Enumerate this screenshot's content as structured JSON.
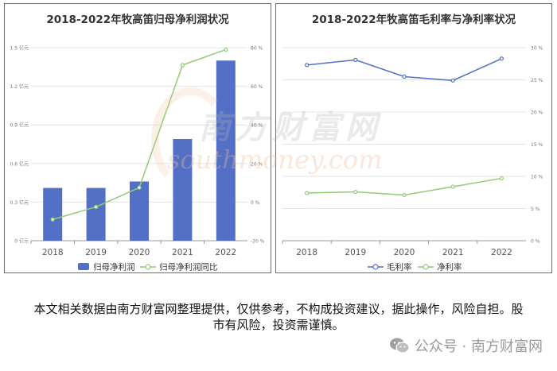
{
  "chart_data": [
    {
      "type": "bar",
      "title": "2018-2022年牧高笛归母净利润状况",
      "categories": [
        "2018",
        "2019",
        "2020",
        "2021",
        "2022"
      ],
      "series": [
        {
          "name": "归母净利润",
          "kind": "bar",
          "axis": "left",
          "values": [
            0.41,
            0.41,
            0.46,
            0.79,
            1.4
          ]
        },
        {
          "name": "归母净利润同比",
          "kind": "line",
          "axis": "right",
          "values": [
            -9,
            -2.5,
            7.5,
            71,
            79
          ]
        }
      ],
      "y_left": {
        "ticks": [
          "0 亿元",
          "0.3 亿元",
          "0.6 亿元",
          "0.9 亿元",
          "1.2 亿元",
          "1.5 亿元"
        ],
        "ylim": [
          0,
          1.5
        ]
      },
      "y_right": {
        "ticks": [
          "-20 %",
          "0 %",
          "20 %",
          "40 %",
          "60 %",
          "80 %"
        ],
        "ylim": [
          -20,
          80
        ]
      },
      "grid": true,
      "legend": "bottom",
      "colors": {
        "bar": "#5470c6",
        "line": "#91cc75"
      }
    },
    {
      "type": "line",
      "title": "2018-2022年牧高笛毛利率与净利率状况",
      "categories": [
        "2018",
        "2019",
        "2020",
        "2021",
        "2022"
      ],
      "series": [
        {
          "name": "毛利率",
          "values": [
            27.3,
            28.1,
            25.5,
            24.9,
            28.3
          ],
          "color": "#5470c6"
        },
        {
          "name": "净利率",
          "values": [
            7.4,
            7.6,
            7.1,
            8.4,
            9.7
          ],
          "color": "#91cc75"
        }
      ],
      "y_right": {
        "ticks": [
          "0 %",
          "5 %",
          "10 %",
          "15 %",
          "20 %",
          "25 %",
          "30 %"
        ],
        "ylim": [
          0,
          30
        ]
      },
      "grid": true,
      "legend": "bottom"
    }
  ],
  "watermark": {
    "cn": "南方财富网",
    "en": "southmoney.com"
  },
  "disclaimer": "本文相关数据由南方财富网整理提供，仅供参考，不构成投资建议，据此操作，风险自担。股市有风险，投资需谨慎。",
  "footer": {
    "text": "公众号 · 南方财富网",
    "icon": "wechat-icon"
  }
}
